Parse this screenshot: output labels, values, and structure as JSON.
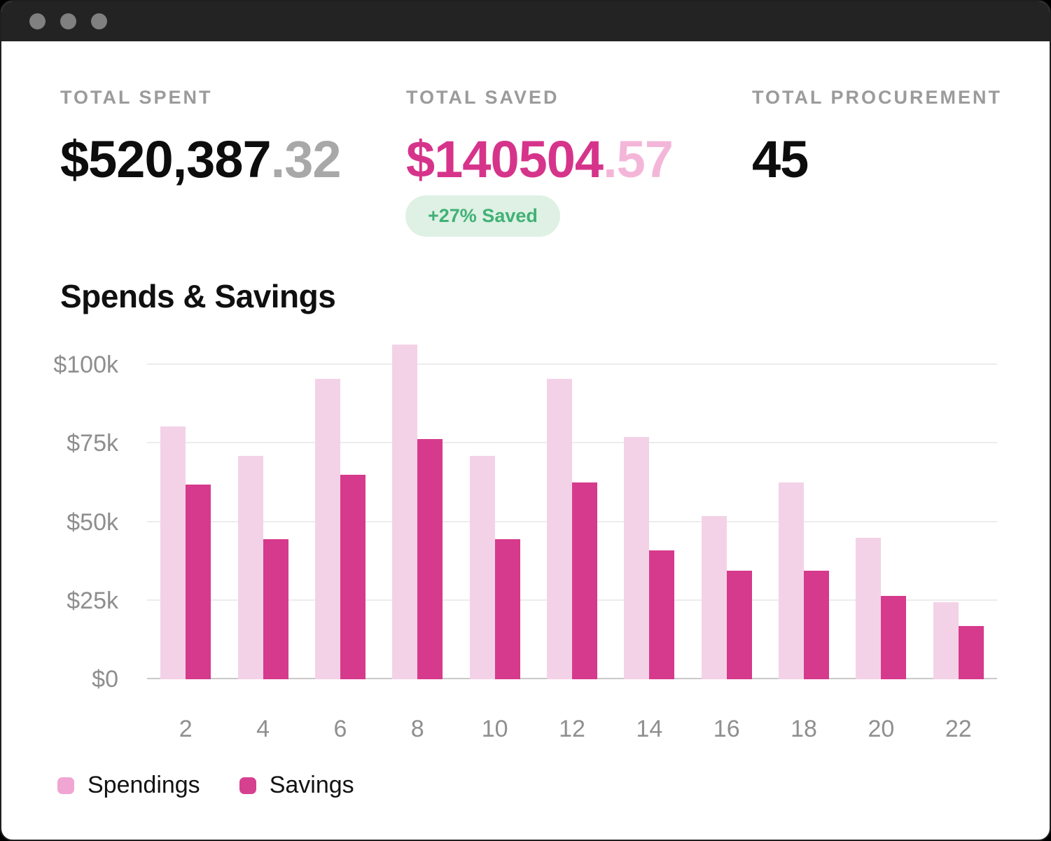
{
  "titlebar": {
    "bg_color": "#232323",
    "dot_color": "#808080",
    "dot_icons": [
      "window-control-dot",
      "window-control-dot",
      "window-control-dot"
    ]
  },
  "stats": {
    "spent": {
      "label": "TOTAL SPENT",
      "value_main": "$520,387",
      "value_fraction": ".32"
    },
    "saved": {
      "label": "TOTAL SAVED",
      "value_main": "$140504",
      "value_fraction": ".57",
      "badge": "+27% Saved"
    },
    "procurement": {
      "label": "TOTAL PROCUREMENT",
      "value": "45"
    }
  },
  "colors": {
    "accent_pink": "#d6348b",
    "accent_pink_light": "#f4b6d8",
    "badge_bg": "#def1e4",
    "badge_text": "#41b176",
    "spendings_bar": "#f3d2e7",
    "savings_bar": "#d63a8c",
    "legend_spendings_swatch": "#f0a5d2",
    "legend_savings_swatch": "#d6418f",
    "gridline": "#ececec",
    "axis_line": "#c9c9c9",
    "tick_text": "#8e8e8e"
  },
  "chart_data": {
    "type": "bar",
    "title": "Spends & Savings",
    "categories": [
      "2",
      "4",
      "6",
      "8",
      "10",
      "12",
      "14",
      "16",
      "18",
      "20",
      "22"
    ],
    "series": [
      {
        "name": "Spendings",
        "color": "#f3d2e7",
        "values": [
          80.5,
          71,
          95.5,
          106.5,
          71,
          95.5,
          77,
          52,
          62.5,
          45,
          24.5
        ]
      },
      {
        "name": "Savings",
        "color": "#d63a8c",
        "values": [
          62,
          44.5,
          65,
          76.5,
          44.5,
          62.5,
          41,
          34.5,
          34.5,
          26.5,
          17
        ]
      }
    ],
    "unit": "thousand USD",
    "y_ticks": [
      {
        "label": "$0",
        "value": 0
      },
      {
        "label": "$25k",
        "value": 25
      },
      {
        "label": "$50k",
        "value": 50
      },
      {
        "label": "$75k",
        "value": 75
      },
      {
        "label": "$100k",
        "value": 100
      }
    ],
    "ylim": [
      0,
      112.5
    ],
    "grid": "horizontal",
    "legend_position": "bottom-left",
    "legend": [
      {
        "label": "Spendings",
        "swatch": "#f0a5d2"
      },
      {
        "label": "Savings",
        "swatch": "#d6418f"
      }
    ]
  }
}
